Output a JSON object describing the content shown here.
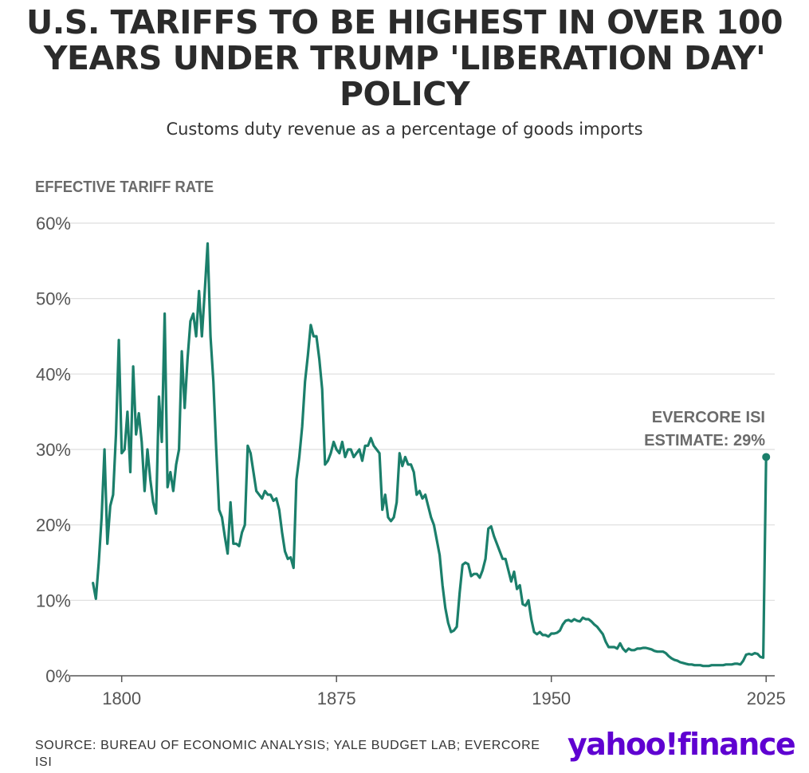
{
  "header": {
    "title": "U.S. TARIFFS TO BE HIGHEST IN OVER 100 YEARS UNDER TRUMP 'LIBERATION DAY' POLICY",
    "subtitle": "Customs duty revenue as a percentage of goods imports"
  },
  "footer": {
    "source": "SOURCE: BUREAU OF ECONOMIC ANALYSIS; YALE BUDGET LAB; EVERCORE ISI",
    "logo_left": "yahoo!",
    "logo_right": "finance"
  },
  "colors": {
    "line": "#1b7f6b",
    "grid": "#dddddd",
    "tick_text": "#555555",
    "annotation": "#6b6b6b"
  },
  "chart_data": {
    "type": "line",
    "title": "U.S. TARIFFS TO BE HIGHEST IN OVER 100 YEARS UNDER TRUMP 'LIBERATION DAY' POLICY",
    "subtitle": "Customs duty revenue as a percentage of goods imports",
    "ylabel": "EFFECTIVE TARIFF RATE",
    "xlabel": "",
    "xlim": [
      1782,
      2028
    ],
    "ylim": [
      0,
      60
    ],
    "xticks": [
      1800,
      1875,
      1950,
      2025
    ],
    "xtick_labels": [
      "1800",
      "1875",
      "1950",
      "2025"
    ],
    "yticks": [
      0,
      10,
      20,
      30,
      40,
      50,
      60
    ],
    "ytick_labels": [
      "0%",
      "10%",
      "20%",
      "30%",
      "40%",
      "50%",
      "60%"
    ],
    "grid": true,
    "annotation": {
      "lines": [
        "EVERCORE ISI",
        "ESTIMATE: 29%"
      ],
      "x": 2025,
      "y": 29
    },
    "series": [
      {
        "name": "Effective tariff rate",
        "x": [
          1790,
          1791,
          1792,
          1793,
          1794,
          1795,
          1796,
          1797,
          1798,
          1799,
          1800,
          1801,
          1802,
          1803,
          1804,
          1805,
          1806,
          1807,
          1808,
          1809,
          1810,
          1811,
          1812,
          1813,
          1814,
          1815,
          1816,
          1817,
          1818,
          1819,
          1820,
          1821,
          1822,
          1823,
          1824,
          1825,
          1826,
          1827,
          1828,
          1829,
          1830,
          1831,
          1832,
          1833,
          1834,
          1835,
          1836,
          1837,
          1838,
          1839,
          1840,
          1841,
          1842,
          1843,
          1844,
          1845,
          1846,
          1847,
          1848,
          1849,
          1850,
          1851,
          1852,
          1853,
          1854,
          1855,
          1856,
          1857,
          1858,
          1859,
          1860,
          1861,
          1862,
          1863,
          1864,
          1865,
          1866,
          1867,
          1868,
          1869,
          1870,
          1871,
          1872,
          1873,
          1874,
          1875,
          1876,
          1877,
          1878,
          1879,
          1880,
          1881,
          1882,
          1883,
          1884,
          1885,
          1886,
          1887,
          1888,
          1889,
          1890,
          1891,
          1892,
          1893,
          1894,
          1895,
          1896,
          1897,
          1898,
          1899,
          1900,
          1901,
          1902,
          1903,
          1904,
          1905,
          1906,
          1907,
          1908,
          1909,
          1910,
          1911,
          1912,
          1913,
          1914,
          1915,
          1916,
          1917,
          1918,
          1919,
          1920,
          1921,
          1922,
          1923,
          1924,
          1925,
          1926,
          1927,
          1928,
          1929,
          1930,
          1931,
          1932,
          1933,
          1934,
          1935,
          1936,
          1937,
          1938,
          1939,
          1940,
          1941,
          1942,
          1943,
          1944,
          1945,
          1946,
          1947,
          1948,
          1949,
          1950,
          1951,
          1952,
          1953,
          1954,
          1955,
          1956,
          1957,
          1958,
          1959,
          1960,
          1961,
          1962,
          1963,
          1964,
          1965,
          1966,
          1967,
          1968,
          1969,
          1970,
          1971,
          1972,
          1973,
          1974,
          1975,
          1976,
          1977,
          1978,
          1979,
          1980,
          1981,
          1982,
          1983,
          1984,
          1985,
          1986,
          1987,
          1988,
          1989,
          1990,
          1991,
          1992,
          1993,
          1994,
          1995,
          1996,
          1997,
          1998,
          1999,
          2000,
          2001,
          2002,
          2003,
          2004,
          2005,
          2006,
          2007,
          2008,
          2009,
          2010,
          2011,
          2012,
          2013,
          2014,
          2015,
          2016,
          2017,
          2018,
          2019,
          2020,
          2021,
          2022,
          2023,
          2024,
          2025
        ],
        "values": [
          12.3,
          10.2,
          15.0,
          21.0,
          30.0,
          17.5,
          22.5,
          24.0,
          32.0,
          44.5,
          29.5,
          30.0,
          35.0,
          27.0,
          41.0,
          32.0,
          34.8,
          31.0,
          24.5,
          30.0,
          26.0,
          23.0,
          21.5,
          37.0,
          31.0,
          48.0,
          25.0,
          27.0,
          24.5,
          28.0,
          30.0,
          43.0,
          35.5,
          42.0,
          47.0,
          48.0,
          45.0,
          51.0,
          45.0,
          51.0,
          57.3,
          45.0,
          39.0,
          30.0,
          22.0,
          21.0,
          18.5,
          16.2,
          23.0,
          17.5,
          17.5,
          17.2,
          19.0,
          20.0,
          30.5,
          29.5,
          27.0,
          24.5,
          24.0,
          23.5,
          24.5,
          24.0,
          24.0,
          23.2,
          23.5,
          22.0,
          19.0,
          16.5,
          15.5,
          15.7,
          14.3,
          26.0,
          29.0,
          33.0,
          39.0,
          42.5,
          46.5,
          45.0,
          45.0,
          42.0,
          38.0,
          28.0,
          28.5,
          29.5,
          31.0,
          30.0,
          29.5,
          31.0,
          29.0,
          30.0,
          30.0,
          29.0,
          29.5,
          30.0,
          28.5,
          30.5,
          30.5,
          31.5,
          30.5,
          30.0,
          29.5,
          22.0,
          24.0,
          21.0,
          20.5,
          21.0,
          23.0,
          29.5,
          27.8,
          29.0,
          28.0,
          28.0,
          27.0,
          24.0,
          24.5,
          23.5,
          24.0,
          22.5,
          21.0,
          20.0,
          18.0,
          16.0,
          12.0,
          9.0,
          7.0,
          5.8,
          6.0,
          6.5,
          11.0,
          14.7,
          15.0,
          14.8,
          13.2,
          13.5,
          13.5,
          13.0,
          14.0,
          15.5,
          19.5,
          19.8,
          18.5,
          17.5,
          16.5,
          15.5,
          15.5,
          14.0,
          12.5,
          13.8,
          11.5,
          12.0,
          9.5,
          9.3,
          10.0,
          7.5,
          5.8,
          5.5,
          5.8,
          5.4,
          5.4,
          5.2,
          5.6,
          5.6,
          5.7,
          6.0,
          6.8,
          7.3,
          7.4,
          7.2,
          7.5,
          7.3,
          7.2,
          7.7,
          7.5,
          7.5,
          7.2,
          6.8,
          6.5,
          6.0,
          5.5,
          4.5,
          3.8,
          3.8,
          3.8,
          3.6,
          4.3,
          3.6,
          3.2,
          3.6,
          3.4,
          3.4,
          3.6,
          3.6,
          3.7,
          3.7,
          3.6,
          3.5,
          3.3,
          3.2,
          3.2,
          3.2,
          3.0,
          2.6,
          2.3,
          2.1,
          2.0,
          1.8,
          1.7,
          1.6,
          1.5,
          1.5,
          1.4,
          1.4,
          1.4,
          1.3,
          1.3,
          1.3,
          1.4,
          1.4,
          1.4,
          1.4,
          1.4,
          1.5,
          1.5,
          1.5,
          1.6,
          1.6,
          1.5,
          2.0,
          2.8,
          2.9,
          2.8,
          3.0,
          2.9,
          2.5,
          2.4,
          29.0
        ]
      }
    ]
  }
}
